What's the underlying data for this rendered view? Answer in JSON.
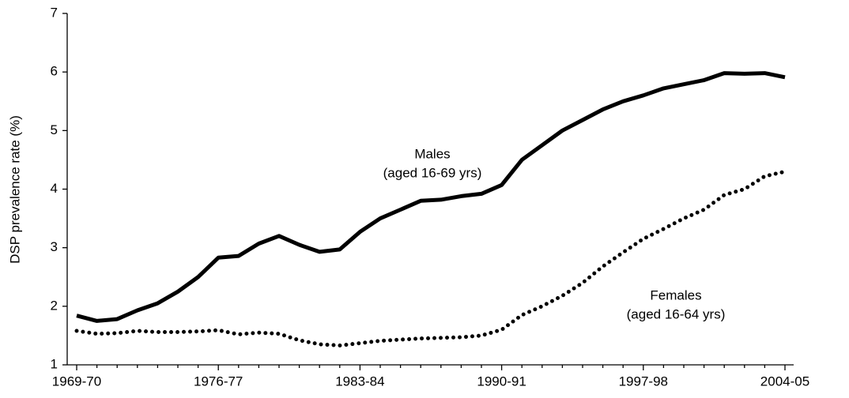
{
  "chart_data": {
    "type": "line",
    "y_label": "DSP prevalence rate (%)",
    "categories": [
      "1969-70",
      null,
      null,
      null,
      null,
      null,
      null,
      "1976-77",
      null,
      null,
      null,
      null,
      null,
      null,
      "1983-84",
      null,
      null,
      null,
      null,
      null,
      null,
      "1990-91",
      null,
      null,
      null,
      null,
      null,
      null,
      "1997-98",
      null,
      null,
      null,
      null,
      null,
      null,
      "2004-05"
    ],
    "series": [
      {
        "color": "#000000",
        "style": "solid",
        "values": [
          1.84,
          1.75,
          1.78,
          1.93,
          2.05,
          2.25,
          2.5,
          2.83,
          2.86,
          3.07,
          3.2,
          3.05,
          2.93,
          2.97,
          3.27,
          3.5,
          3.65,
          3.8,
          3.82,
          3.88,
          3.92,
          4.07,
          4.5,
          4.75,
          5.0,
          5.18,
          5.36,
          5.5,
          5.6,
          5.72,
          5.79,
          5.86,
          5.98,
          5.97,
          5.98,
          5.91
        ]
      },
      {
        "color": "#000000",
        "style": "dotted",
        "values": [
          1.58,
          1.53,
          1.54,
          1.58,
          1.56,
          1.56,
          1.57,
          1.59,
          1.52,
          1.55,
          1.53,
          1.42,
          1.35,
          1.33,
          1.37,
          1.41,
          1.43,
          1.45,
          1.46,
          1.47,
          1.5,
          1.6,
          1.85,
          2.0,
          2.18,
          2.4,
          2.68,
          2.92,
          3.15,
          3.32,
          3.5,
          3.65,
          3.9,
          4.0,
          4.22,
          4.3
        ]
      }
    ],
    "annotations": [
      {
        "lines": [
          "Males",
          "(aged 16-69 yrs)"
        ]
      },
      {
        "lines": [
          "Females",
          "(aged 16-64 yrs)"
        ]
      }
    ],
    "ylim": [
      1,
      7
    ],
    "yticks": [
      1,
      2,
      3,
      4,
      5,
      6,
      7
    ],
    "grid": false
  }
}
